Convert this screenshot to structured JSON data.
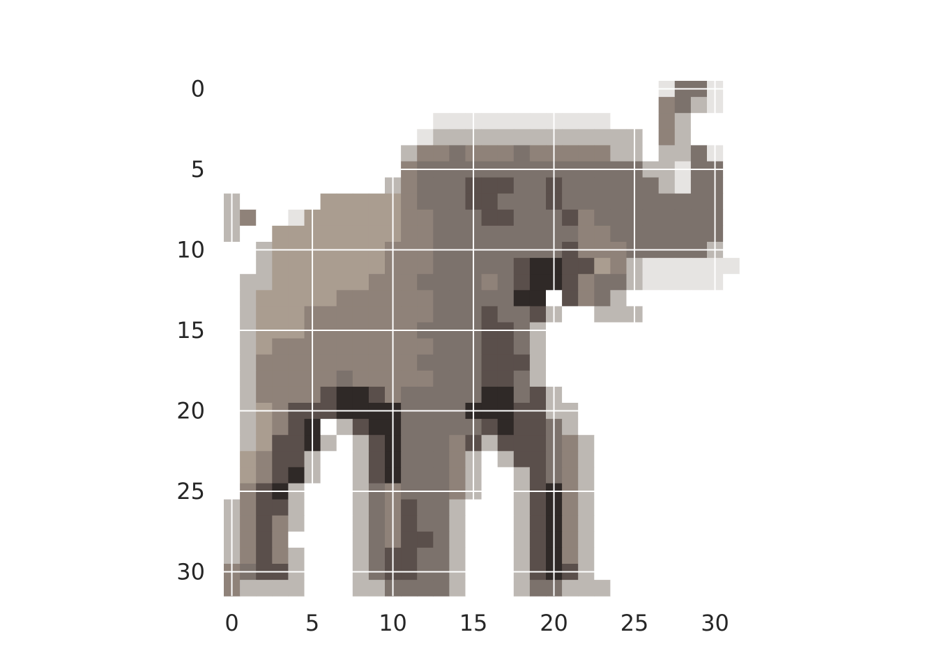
{
  "image": {
    "subject": "elephant",
    "grid_size": [
      32,
      32
    ],
    "grid_lines": true,
    "grid_color": "#ffffff",
    "background_color": "#ffffff",
    "palette": {
      "w": "#ffffff",
      "l": "#e6e4e2",
      "s": "#bdb8b3",
      "t": "#aa9d90",
      "g": "#8f8279",
      "m": "#7c726c",
      "d": "#5a4f4b",
      "k": "#2f2927"
    },
    "rows": [
      "wwwwwwwwwwwwwwwwwwwwwwwwwwwlmmlw",
      "wwwwwwwwwwwwwwwwwwwwwwwwwwwgmslw",
      "wwwwwwwwwwwwwlllllllllllwwwgswww",
      "wwwwwwwwwwwwlssssssssssssswgswww",
      "wwwwwwwwwwwsggmgggmgggggsswssmlw",
      "wwwwwwwwwwwgmmmmmmmmmmmmmmsslmmw",
      "wwwwwwwwwwsgmmmdddmmdmmmmmmslmmw",
      "swwwwwtttttgmmmddmmmdmmmmmmmmmmw",
      "sgwwlttttttggmmmddmmmdgmmmmmmmmw",
      "swwttttttttggmmmmmmmmmggmmmmmmmw",
      "wwstttttttgggmmmmmmmmdgggmmmmmsw",
      "wwstttttttgggmmmmmdkkddtgsllllll",
      "wssttttttgggmmmmgmdkkdgmmslllllw",
      "wstttttggggggmmmmmkkwdgmswwwwwww",
      "wstttggggggggmmmdmmdswwssswwwwww",
      "wstttgggggggmmmmddmswwwwwwwwwwww",
      "wstggggggggggmmmddmswwwwwwwwwwww",
      "wsggggggggggmmmmdddswwwwwwwwwwww",
      "wsgggggmgggggmmmddmswwwwwwwwwwww",
      "wsggggdkkdgmmmmmkkmdswwwwwwwwwww",
      "wstgdddkkkkmmmmkkkddsswwwwwwwwww",
      "wstgdkwsdkkmmmmmdkddmswwwwwwwwww",
      "wstddkswsdkmmmgdsdddmgswwwwwwwww",
      "wtgddswwsdkmmmgswsddmgswwwwwwwww",
      "wtgdkswwsdkmmmgswwsdmgswwwwwwwww",
      "wgdkswwwsmgmmmgswwsdkgswwwwwwwww",
      "sgddswwwsmgdmmswwwsdkgswwwwwwwww",
      "sgdgswwwsmgdmmswwwsdkgswwwwwwwww",
      "sgdgwwwwsmgddmswwwsdkgswwwwwwwww",
      "sgdgswwwsmddmmswwwsdkgswwwwwwwww",
      "gmddswwwsmddmmswwwsdkdswwwwwwwww",
      "gsssswwwssmmmmswwwsmmssswwwwwwww"
    ]
  },
  "axes": {
    "x_tick_labels": [
      "0",
      "5",
      "10",
      "15",
      "20",
      "25",
      "30"
    ],
    "y_tick_labels": [
      "0",
      "5",
      "10",
      "15",
      "20",
      "25",
      "30"
    ],
    "tick_values": [
      0,
      5,
      10,
      15,
      20,
      25,
      30
    ],
    "tick_color": "#262626"
  }
}
